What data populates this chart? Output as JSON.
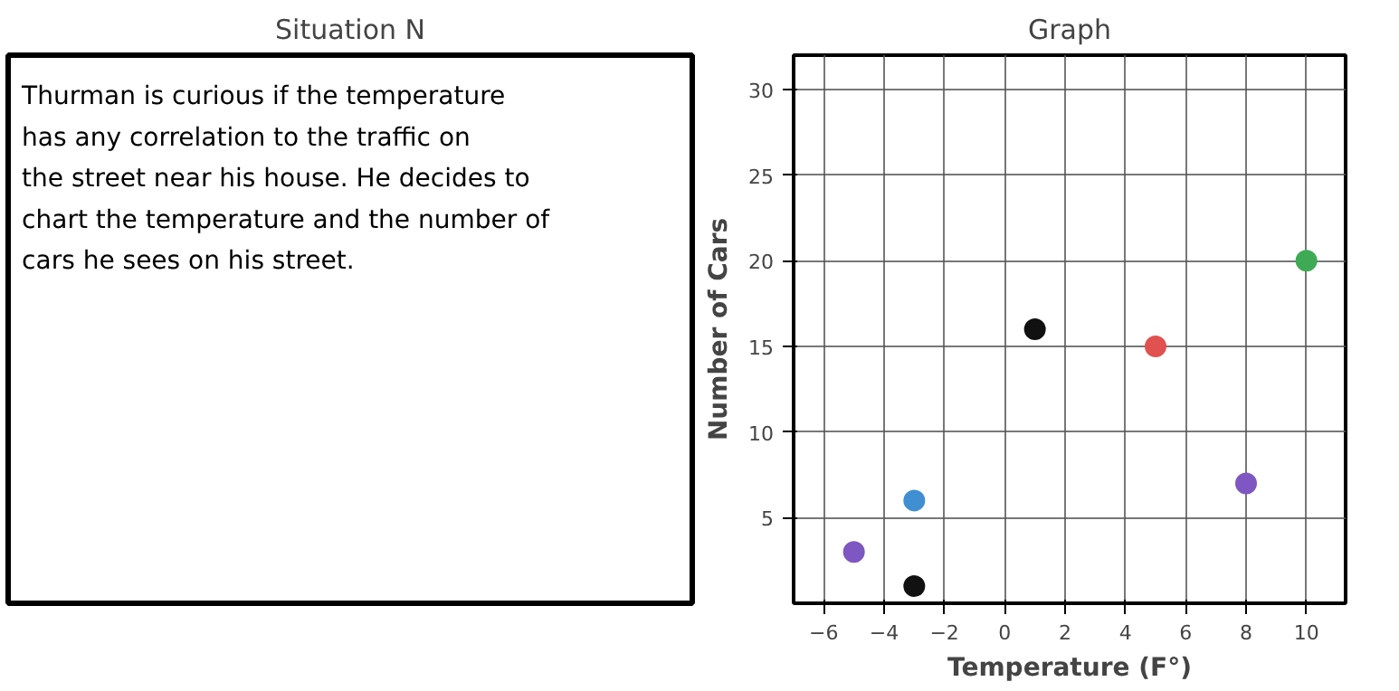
{
  "chart_data": [
    {
      "type": "other",
      "title": "Situation N",
      "annotations": [
        "Thurman is curious if the temperature has any correlation to the traffic on the street near his house. He decides to chart the temperature and the number of cars he sees on his street."
      ]
    },
    {
      "type": "scatter",
      "title": "Graph",
      "xlabel": "Temperature (F°)",
      "ylabel": "Number of Cars",
      "x": [
        -5,
        -3,
        -3,
        1,
        5,
        8,
        10
      ],
      "values": [
        3,
        6,
        1,
        16,
        15,
        7,
        20
      ],
      "colors": [
        "#7e57c2",
        "#3f8fd2",
        "#111111",
        "#111111",
        "#e0514f",
        "#7e57c2",
        "#3faa55"
      ],
      "xlim": [
        -7,
        11.3
      ],
      "ylim": [
        0,
        32
      ],
      "xticks": [
        -6,
        -4,
        -2,
        0,
        2,
        4,
        6,
        8,
        10
      ],
      "yticks": [
        5,
        10,
        15,
        20,
        25,
        30
      ],
      "grid": true,
      "marker": "circle"
    }
  ]
}
